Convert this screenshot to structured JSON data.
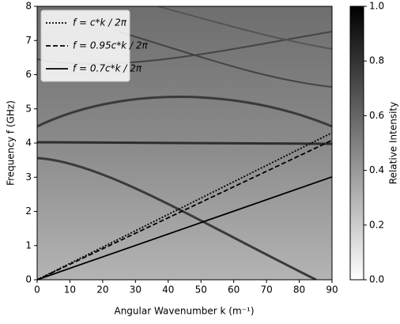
{
  "chart_data": {
    "type": "line",
    "xlabel": "Angular Wavenumber k (m⁻¹)",
    "ylabel": "Frequency f (GHz)",
    "x": [
      0,
      90
    ],
    "series": [
      {
        "name": "f = c*k / 2π",
        "color": "#000000",
        "style": "dotted",
        "values": [
          0,
          4.3
        ]
      },
      {
        "name": "f = 0.95c*k / 2π",
        "color": "#000000",
        "style": "dashed",
        "values": [
          0,
          4.08
        ]
      },
      {
        "name": "f = 0.7c*k / 2π",
        "color": "#000000",
        "style": "solid",
        "values": [
          0,
          3.01
        ]
      }
    ],
    "xlim": [
      0,
      90
    ],
    "xticks": [
      0,
      10,
      20,
      30,
      40,
      50,
      60,
      70,
      80,
      90
    ],
    "ylim": [
      0,
      8
    ],
    "yticks": [
      0,
      1,
      2,
      3,
      4,
      5,
      6,
      7,
      8
    ],
    "legend": "upper left",
    "colorbar": {
      "label": "Relative Intensity",
      "lim": [
        0,
        1
      ],
      "colors": [
        "#ffffff",
        "#000000"
      ],
      "ticks": [
        {
          "value": 0,
          "label": "0.0"
        },
        0.2,
        0.4,
        0.6,
        0.8,
        {
          "value": 1,
          "label": "1.0"
        }
      ]
    }
  }
}
